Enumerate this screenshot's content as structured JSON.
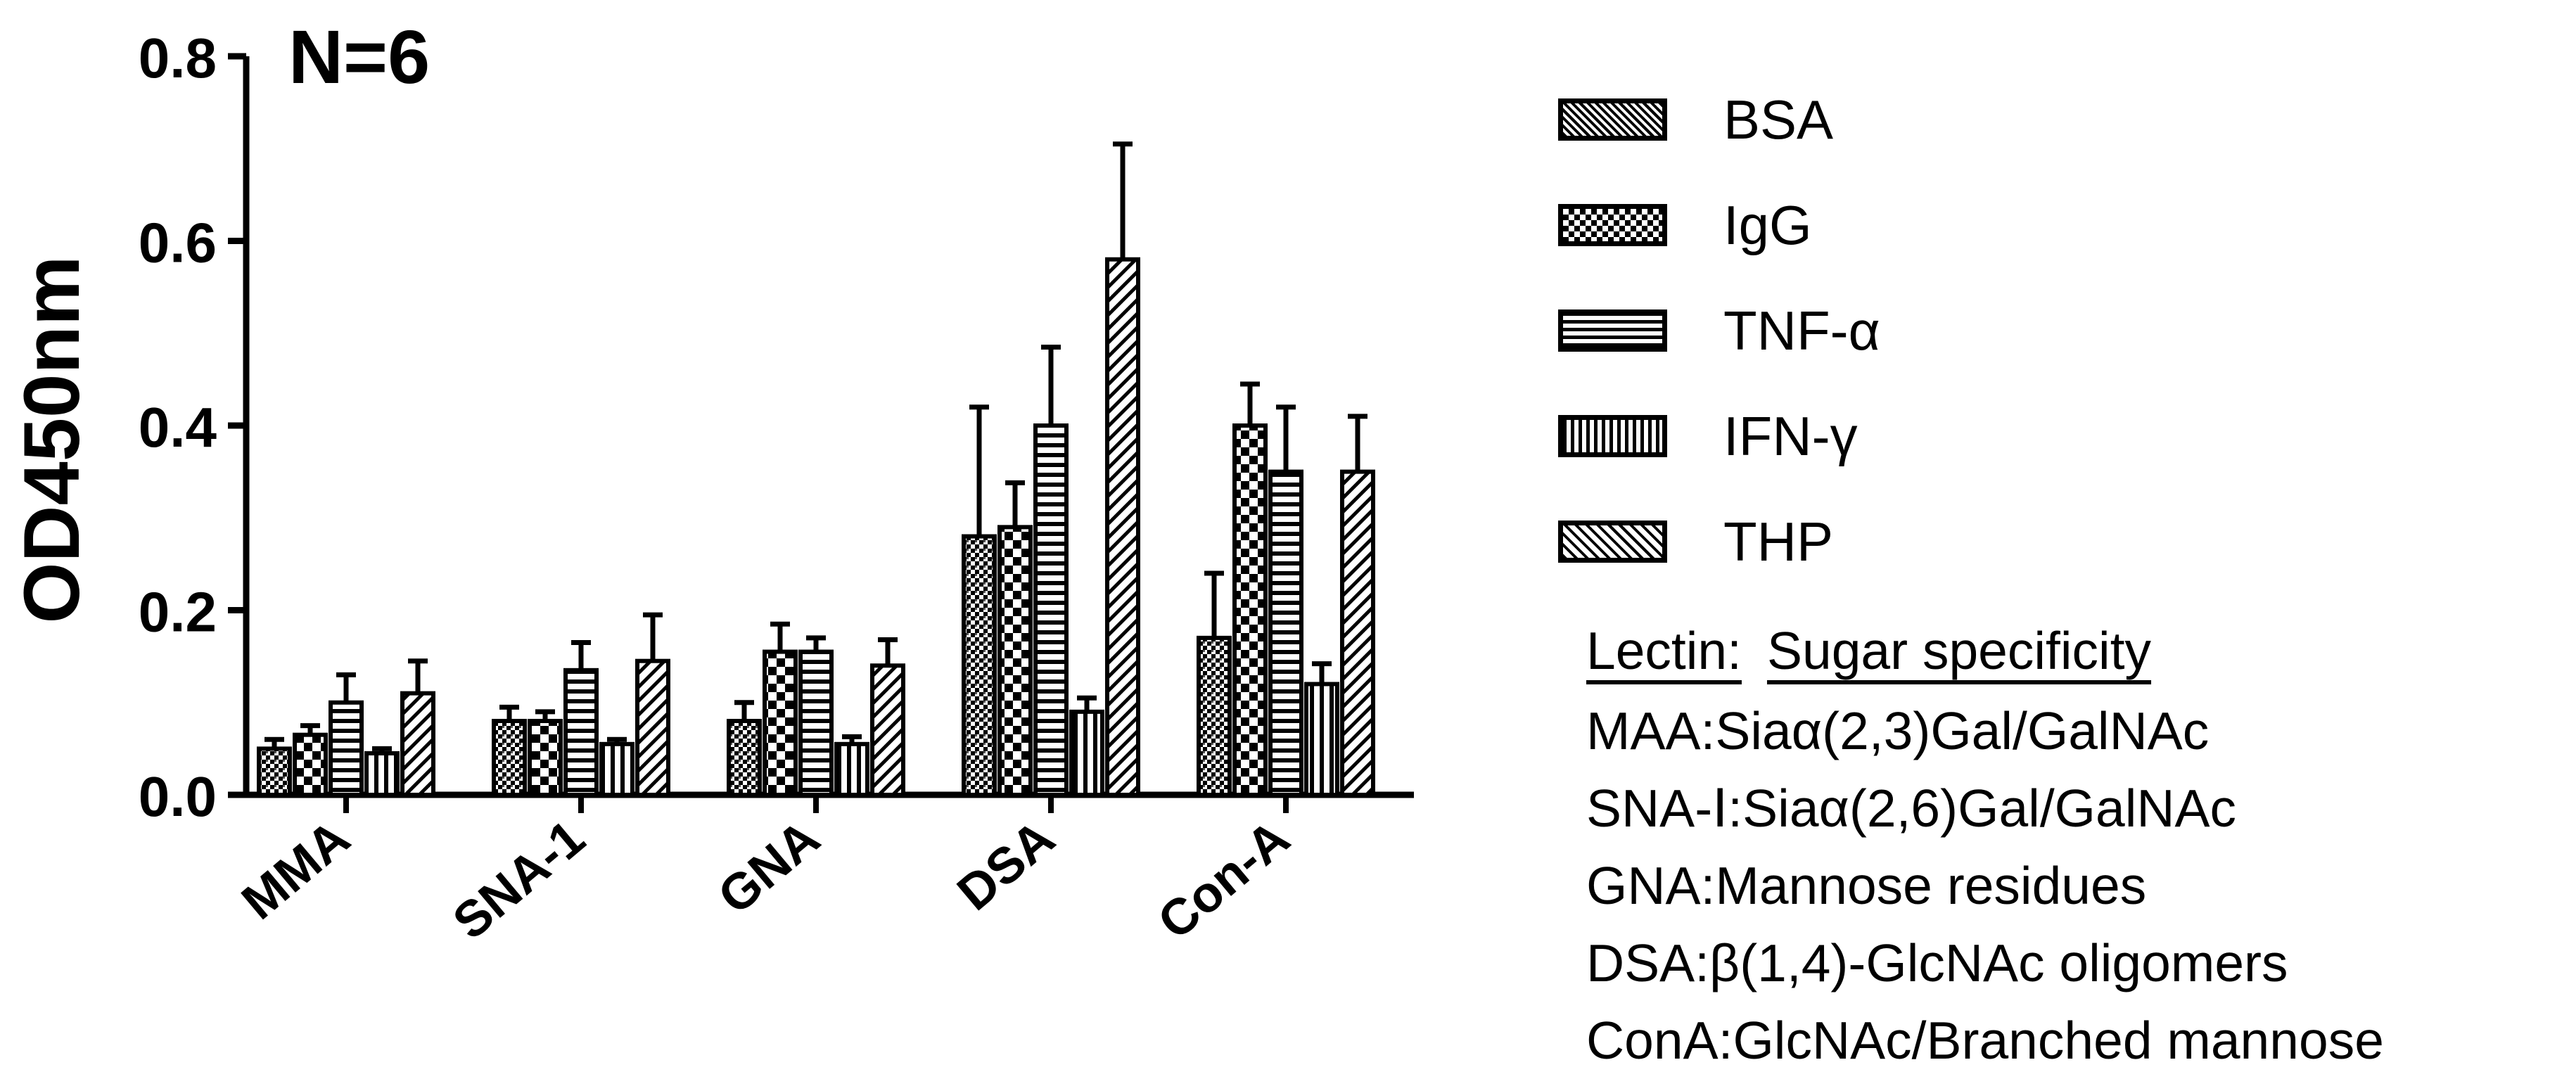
{
  "chart_data": {
    "type": "bar",
    "annotation": "N=6",
    "ylabel": "OD450nm",
    "xlabel": "",
    "ylim": [
      0,
      0.8
    ],
    "yticks": [
      "0.0",
      "0.2",
      "0.4",
      "0.6",
      "0.8"
    ],
    "categories": [
      "MMA",
      "SNA-1",
      "GNA",
      "DSA",
      "Con-A"
    ],
    "series": [
      {
        "name": "BSA",
        "pattern": "dots-dense",
        "values": [
          0.05,
          0.08,
          0.08,
          0.28,
          0.17
        ],
        "errors": [
          0.01,
          0.015,
          0.02,
          0.14,
          0.07
        ]
      },
      {
        "name": "IgG",
        "pattern": "checker",
        "values": [
          0.065,
          0.08,
          0.155,
          0.29,
          0.4
        ],
        "errors": [
          0.01,
          0.01,
          0.03,
          0.048,
          0.045
        ]
      },
      {
        "name": "TNF-α",
        "pattern": "horizontal",
        "values": [
          0.1,
          0.135,
          0.155,
          0.4,
          0.35
        ],
        "errors": [
          0.03,
          0.03,
          0.015,
          0.085,
          0.07
        ]
      },
      {
        "name": "IFN-γ",
        "pattern": "vertical",
        "values": [
          0.045,
          0.055,
          0.055,
          0.09,
          0.12
        ],
        "errors": [
          0.005,
          0.005,
          0.008,
          0.015,
          0.022
        ]
      },
      {
        "name": "THP",
        "pattern": "diagonal",
        "values": [
          0.11,
          0.145,
          0.14,
          0.58,
          0.35
        ],
        "errors": [
          0.035,
          0.05,
          0.028,
          0.125,
          0.06
        ]
      }
    ],
    "legend_position": "top-right",
    "grid": false
  },
  "lectin_note": {
    "header_left": "Lectin:",
    "header_right": "Sugar specificity",
    "lines": [
      "MAA:Siaα(2,3)Gal/GalNAc",
      "SNA-Ⅰ:Siaα(2,6)Gal/GalNAc",
      "GNA:Mannose residues",
      "DSA:β(1,4)-GlcNAc oligomers",
      "ConA:GlcNAc/Branched mannose"
    ]
  }
}
